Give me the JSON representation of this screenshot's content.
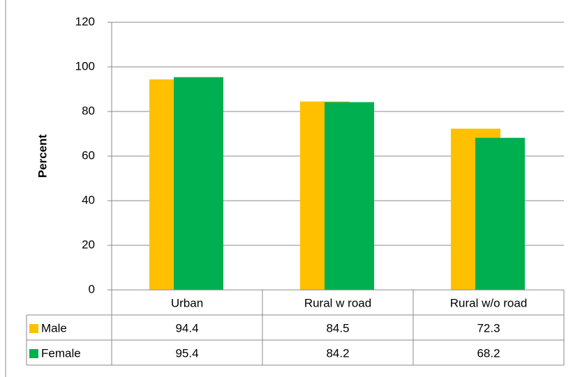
{
  "chart_data": {
    "type": "bar",
    "y_label": "Percent",
    "categories": [
      "Urban",
      "Rural w road",
      "Rural w/o road"
    ],
    "series": [
      {
        "name": "Male",
        "color": "#FFC000",
        "values": [
          94.4,
          84.5,
          72.3
        ]
      },
      {
        "name": "Female",
        "color": "#00B050",
        "values": [
          95.4,
          84.2,
          68.2
        ]
      }
    ],
    "ylim": [
      0,
      120
    ],
    "yticks": [
      0,
      20,
      40,
      60,
      80,
      100,
      120
    ],
    "grid": true,
    "data_table": true
  }
}
